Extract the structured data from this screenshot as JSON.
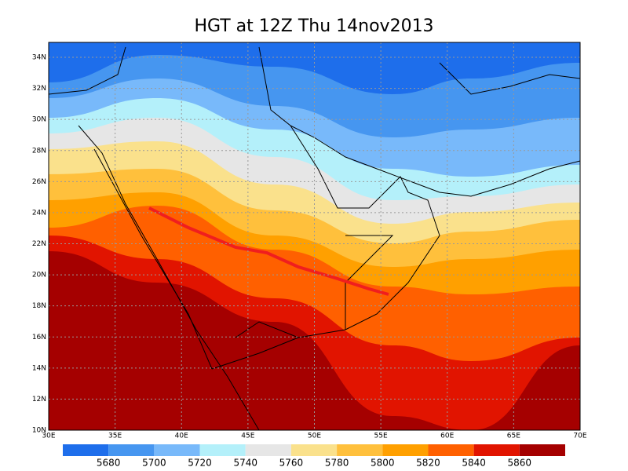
{
  "title": "HGT at 12Z Thu 14nov2013",
  "lon_ticks": [
    {
      "value": 30,
      "label": "30E"
    },
    {
      "value": 35,
      "label": "35E"
    },
    {
      "value": 40,
      "label": "40E"
    },
    {
      "value": 45,
      "label": "45E"
    },
    {
      "value": 50,
      "label": "50E"
    },
    {
      "value": 55,
      "label": "55E"
    },
    {
      "value": 60,
      "label": "60E"
    },
    {
      "value": 65,
      "label": "65E"
    },
    {
      "value": 70,
      "label": "70E"
    }
  ],
  "lat_ticks": [
    {
      "value": 10,
      "label": "10N"
    },
    {
      "value": 12,
      "label": "12N"
    },
    {
      "value": 14,
      "label": "14N"
    },
    {
      "value": 16,
      "label": "16N"
    },
    {
      "value": 18,
      "label": "18N"
    },
    {
      "value": 20,
      "label": "20N"
    },
    {
      "value": 22,
      "label": "22N"
    },
    {
      "value": 24,
      "label": "24N"
    },
    {
      "value": 26,
      "label": "26N"
    },
    {
      "value": 28,
      "label": "28N"
    },
    {
      "value": 30,
      "label": "30N"
    },
    {
      "value": 32,
      "label": "32N"
    },
    {
      "value": 34,
      "label": "34N"
    }
  ],
  "colorbar": {
    "levels": [
      5680,
      5700,
      5720,
      5740,
      5760,
      5780,
      5800,
      5820,
      5840,
      5860
    ],
    "colors": [
      "#1e6eeb",
      "#4696f0",
      "#78b9fa",
      "#b4f0fa",
      "#e6e6e6",
      "#fae18c",
      "#ffc03c",
      "#ffa000",
      "#ff6000",
      "#e11400",
      "#a50000"
    ]
  }
}
